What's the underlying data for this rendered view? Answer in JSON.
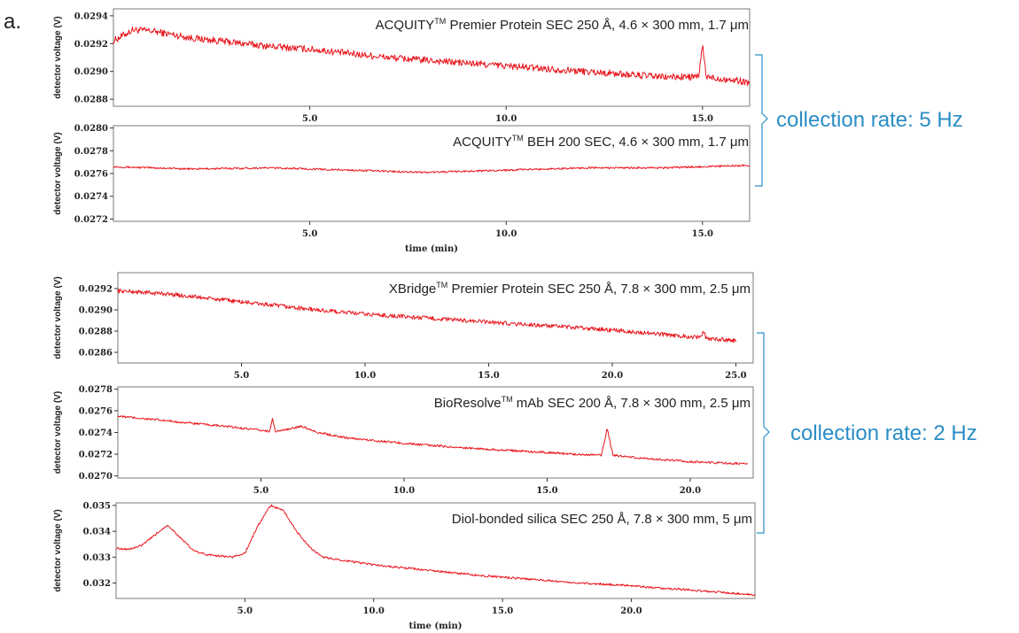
{
  "figure": {
    "panel_letter": "a.",
    "groups": [
      {
        "label": "collection rate: 5 Hz"
      },
      {
        "label": "collection rate: 2 Hz"
      }
    ]
  },
  "colors": {
    "trace": "#e8141b",
    "brace": "#2a8dc6"
  },
  "chart_data": [
    {
      "type": "line",
      "title": "ACQUITY™ Premier Protein SEC 250 Å, 4.6 × 300 mm, 1.7 μm",
      "title_parts": [
        "ACQUITY",
        "TM",
        " Premier Protein SEC 250 Å, 4.6 × 300 mm, 1.7 μm"
      ],
      "ylabel": "detector voltage (V)",
      "xlabel": "",
      "xlim": [
        0,
        16.2
      ],
      "ylim": [
        0.02875,
        0.02945
      ],
      "xticks": [
        5.0,
        10.0,
        15.0
      ],
      "xtick_labels": [
        "5.0",
        "10.0",
        "15.0"
      ],
      "yticks": [
        0.0288,
        0.029,
        0.0292,
        0.0294
      ],
      "ytick_labels": [
        "0.0288",
        "0.0290",
        "0.0292",
        "0.0294"
      ],
      "series": [
        {
          "x": [
            0,
            0.5,
            1,
            2,
            3,
            4,
            5,
            6,
            7,
            8,
            9,
            10,
            11,
            12,
            13,
            14,
            14.9,
            15,
            15.1,
            16,
            16.2
          ],
          "y": [
            0.02922,
            0.0293,
            0.02929,
            0.02924,
            0.02921,
            0.02918,
            0.02916,
            0.02913,
            0.0291,
            0.02908,
            0.02906,
            0.02904,
            0.02902,
            0.029,
            0.02898,
            0.02896,
            0.02896,
            0.02919,
            0.02896,
            0.02893,
            0.02892
          ],
          "noise": 2.5e-05
        }
      ]
    },
    {
      "type": "line",
      "title": "ACQUITY™ BEH 200 SEC, 4.6 × 300 mm, 1.7 μm",
      "title_parts": [
        "ACQUITY",
        "TM",
        " BEH 200 SEC, 4.6 × 300 mm, 1.7 μm"
      ],
      "ylabel": "detector voltage (V)",
      "xlabel": "time (min)",
      "xlim": [
        0,
        16.2
      ],
      "ylim": [
        0.02718,
        0.02802
      ],
      "xticks": [
        5.0,
        10.0,
        15.0
      ],
      "xtick_labels": [
        "5.0",
        "10.0",
        "15.0"
      ],
      "yticks": [
        0.0272,
        0.0274,
        0.0276,
        0.0278,
        0.028
      ],
      "ytick_labels": [
        "0.0272",
        "0.0274",
        "0.0276",
        "0.0278",
        "0.0280"
      ],
      "series": [
        {
          "x": [
            0,
            2,
            4,
            6,
            8,
            10,
            12,
            14,
            16,
            16.2
          ],
          "y": [
            0.02766,
            0.02764,
            0.02765,
            0.02763,
            0.02761,
            0.02763,
            0.02765,
            0.02765,
            0.02767,
            0.02767
          ],
          "noise": 8e-06
        }
      ]
    },
    {
      "type": "line",
      "title": "XBridge™ Premier Protein SEC 250 Å, 7.8 × 300 mm, 2.5 μm",
      "title_parts": [
        "XBridge",
        "TM",
        " Premier Protein SEC 250 Å, 7.8 × 300 mm, 2.5 μm"
      ],
      "ylabel": "detector voltage (V)",
      "xlabel": "",
      "xlim": [
        0,
        25.7
      ],
      "ylim": [
        0.0285,
        0.02935
      ],
      "xticks": [
        5.0,
        10.0,
        15.0,
        20.0,
        25.0
      ],
      "xtick_labels": [
        "5.0",
        "10.0",
        "15.0",
        "20.0",
        "25.0"
      ],
      "yticks": [
        0.0286,
        0.0288,
        0.029,
        0.0292
      ],
      "ytick_labels": [
        "0.0286",
        "0.0288",
        "0.0290",
        "0.0292"
      ],
      "series": [
        {
          "x": [
            0,
            2,
            4,
            6,
            8,
            10,
            12,
            14,
            16,
            18,
            20,
            22,
            23.6,
            23.7,
            23.8,
            25
          ],
          "y": [
            0.02918,
            0.02915,
            0.0291,
            0.02905,
            0.029,
            0.02896,
            0.02893,
            0.0289,
            0.02887,
            0.02884,
            0.02881,
            0.02877,
            0.02874,
            0.0288,
            0.02873,
            0.02871
          ],
          "noise": 2e-05
        }
      ]
    },
    {
      "type": "line",
      "title": "BioResolve™ mAb SEC 200 Å, 7.8 × 300 mm, 2.5 μm",
      "title_parts": [
        "BioResolve",
        "TM",
        " mAb SEC 200 Å, 7.8 × 300 mm, 2.5 μm"
      ],
      "ylabel": "detector voltage (V)",
      "xlabel": "",
      "xlim": [
        0,
        22.2
      ],
      "ylim": [
        0.02698,
        0.02782
      ],
      "xticks": [
        5.0,
        10.0,
        15.0,
        20.0
      ],
      "xtick_labels": [
        "5.0",
        "10.0",
        "15.0",
        "20.0"
      ],
      "yticks": [
        0.027,
        0.0272,
        0.0274,
        0.0276,
        0.0278
      ],
      "ytick_labels": [
        "0.0270",
        "0.0272",
        "0.0274",
        "0.0276",
        "0.0278"
      ],
      "series": [
        {
          "x": [
            0,
            2,
            4,
            5.3,
            5.4,
            5.5,
            6,
            6.4,
            7,
            8,
            10,
            12,
            14,
            16,
            16.9,
            17.1,
            17.3,
            18,
            20,
            22
          ],
          "y": [
            0.02755,
            0.0275,
            0.02745,
            0.02741,
            0.02753,
            0.02741,
            0.02743,
            0.02746,
            0.0274,
            0.02735,
            0.0273,
            0.02726,
            0.02723,
            0.0272,
            0.02719,
            0.02744,
            0.02719,
            0.02717,
            0.02713,
            0.02711
          ],
          "noise": 1e-05
        }
      ]
    },
    {
      "type": "line",
      "title": "Diol-bonded silica SEC 250 Å, 7.8 × 300 mm, 5 μm",
      "title_parts": [
        "Diol-bonded silica SEC 250 Å, 7.8 × 300 mm, 5 μm",
        "",
        ""
      ],
      "ylabel": "detector voltage (V)",
      "xlabel": "time (min)",
      "xlim": [
        0,
        24.8
      ],
      "ylim": [
        0.0314,
        0.0351
      ],
      "xticks": [
        5.0,
        10.0,
        15.0,
        20.0
      ],
      "xtick_labels": [
        "5.0",
        "10.0",
        "15.0",
        "20.0"
      ],
      "yticks": [
        0.032,
        0.033,
        0.034,
        0.035
      ],
      "ytick_labels": [
        "0.032",
        "0.033",
        "0.034",
        "0.035"
      ],
      "series": [
        {
          "x": [
            0,
            0.5,
            1,
            1.5,
            2,
            2.5,
            3,
            3.5,
            4,
            4.5,
            5,
            5.5,
            6,
            6.5,
            7,
            7.5,
            8,
            9,
            10,
            11,
            12,
            13,
            14,
            16,
            18,
            20,
            21,
            22,
            24,
            24.8
          ],
          "y": [
            0.03335,
            0.0333,
            0.03345,
            0.03385,
            0.03425,
            0.03375,
            0.03325,
            0.0331,
            0.03305,
            0.033,
            0.03315,
            0.0342,
            0.035,
            0.0348,
            0.034,
            0.0334,
            0.033,
            0.03285,
            0.0327,
            0.0326,
            0.0325,
            0.0324,
            0.0323,
            0.03215,
            0.032,
            0.0319,
            0.0318,
            0.03175,
            0.0316,
            0.03155
          ],
          "noise": 4e-05
        }
      ]
    }
  ]
}
